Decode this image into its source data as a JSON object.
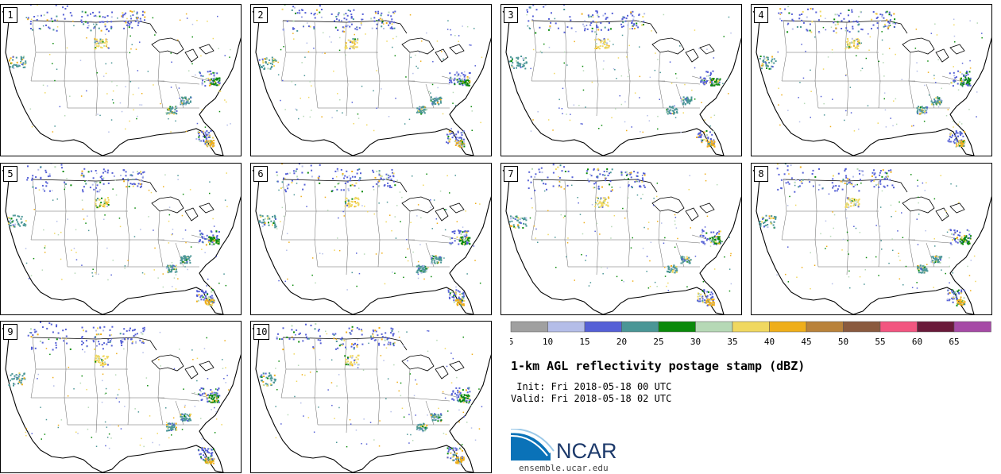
{
  "panels": [
    "1",
    "2",
    "3",
    "4",
    "5",
    "6",
    "7",
    "8",
    "9",
    "10"
  ],
  "colorbar": {
    "ticks": [
      "5",
      "10",
      "15",
      "20",
      "25",
      "30",
      "35",
      "40",
      "45",
      "50",
      "55",
      "60",
      "65"
    ],
    "colors": [
      "#a0a0a0",
      "#b4bde8",
      "#5560d6",
      "#4a9696",
      "#0a8a0a",
      "#b6d9b6",
      "#f0d860",
      "#efae1a",
      "#b9823a",
      "#8a5a3e",
      "#f25580",
      "#6a1a3a",
      "#a64aa6"
    ]
  },
  "product": {
    "title": "1-km AGL reflectivity postage stamp (dBZ)",
    "init": " Init: Fri 2018-05-18 00 UTC",
    "valid": "Valid: Fri 2018-05-18 02 UTC"
  },
  "branding": {
    "logo_text": "NCAR",
    "url": "ensemble.ucar.edu"
  }
}
